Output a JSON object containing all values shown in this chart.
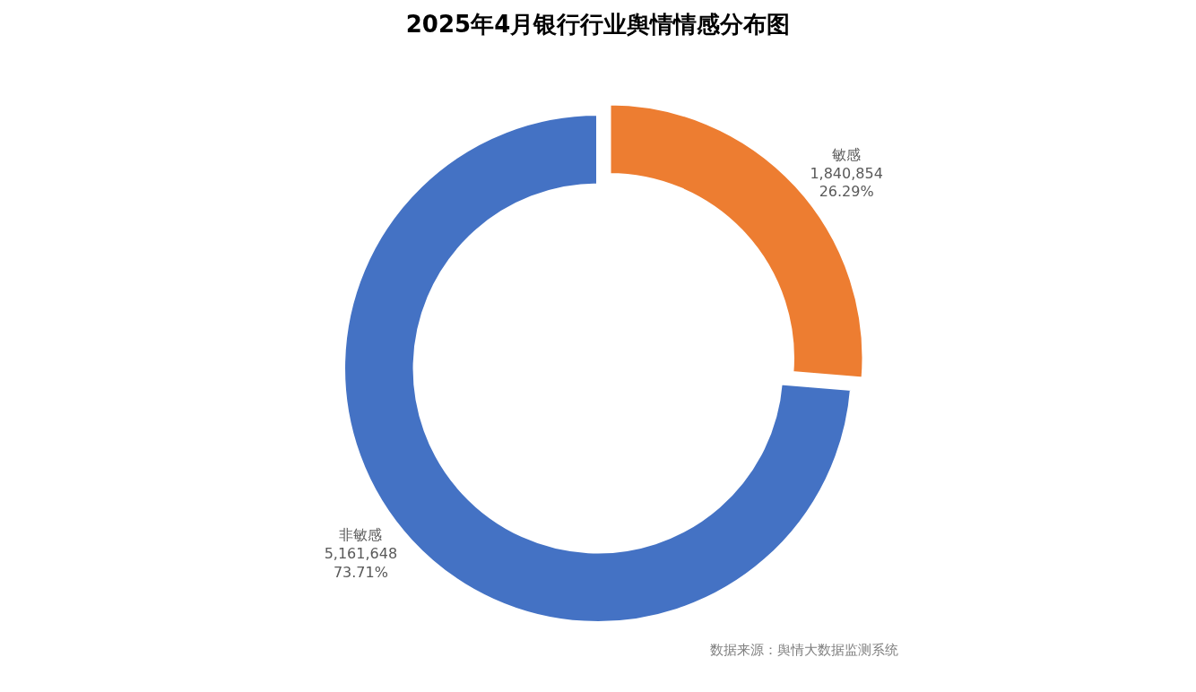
{
  "chart_data": {
    "type": "donut",
    "title": "2025年4月银行行业舆情情感分布图",
    "categories": [
      "敏感",
      "非敏感"
    ],
    "values": [
      1840854,
      5161648
    ],
    "colors": [
      "#ed7d31",
      "#4472c4"
    ],
    "value_labels": [
      "1,840,854\n26.29%",
      "5,161,648\n73.71%"
    ],
    "legend": false,
    "annotations": [
      "数据来源：舆情大数据监测系统"
    ]
  }
}
